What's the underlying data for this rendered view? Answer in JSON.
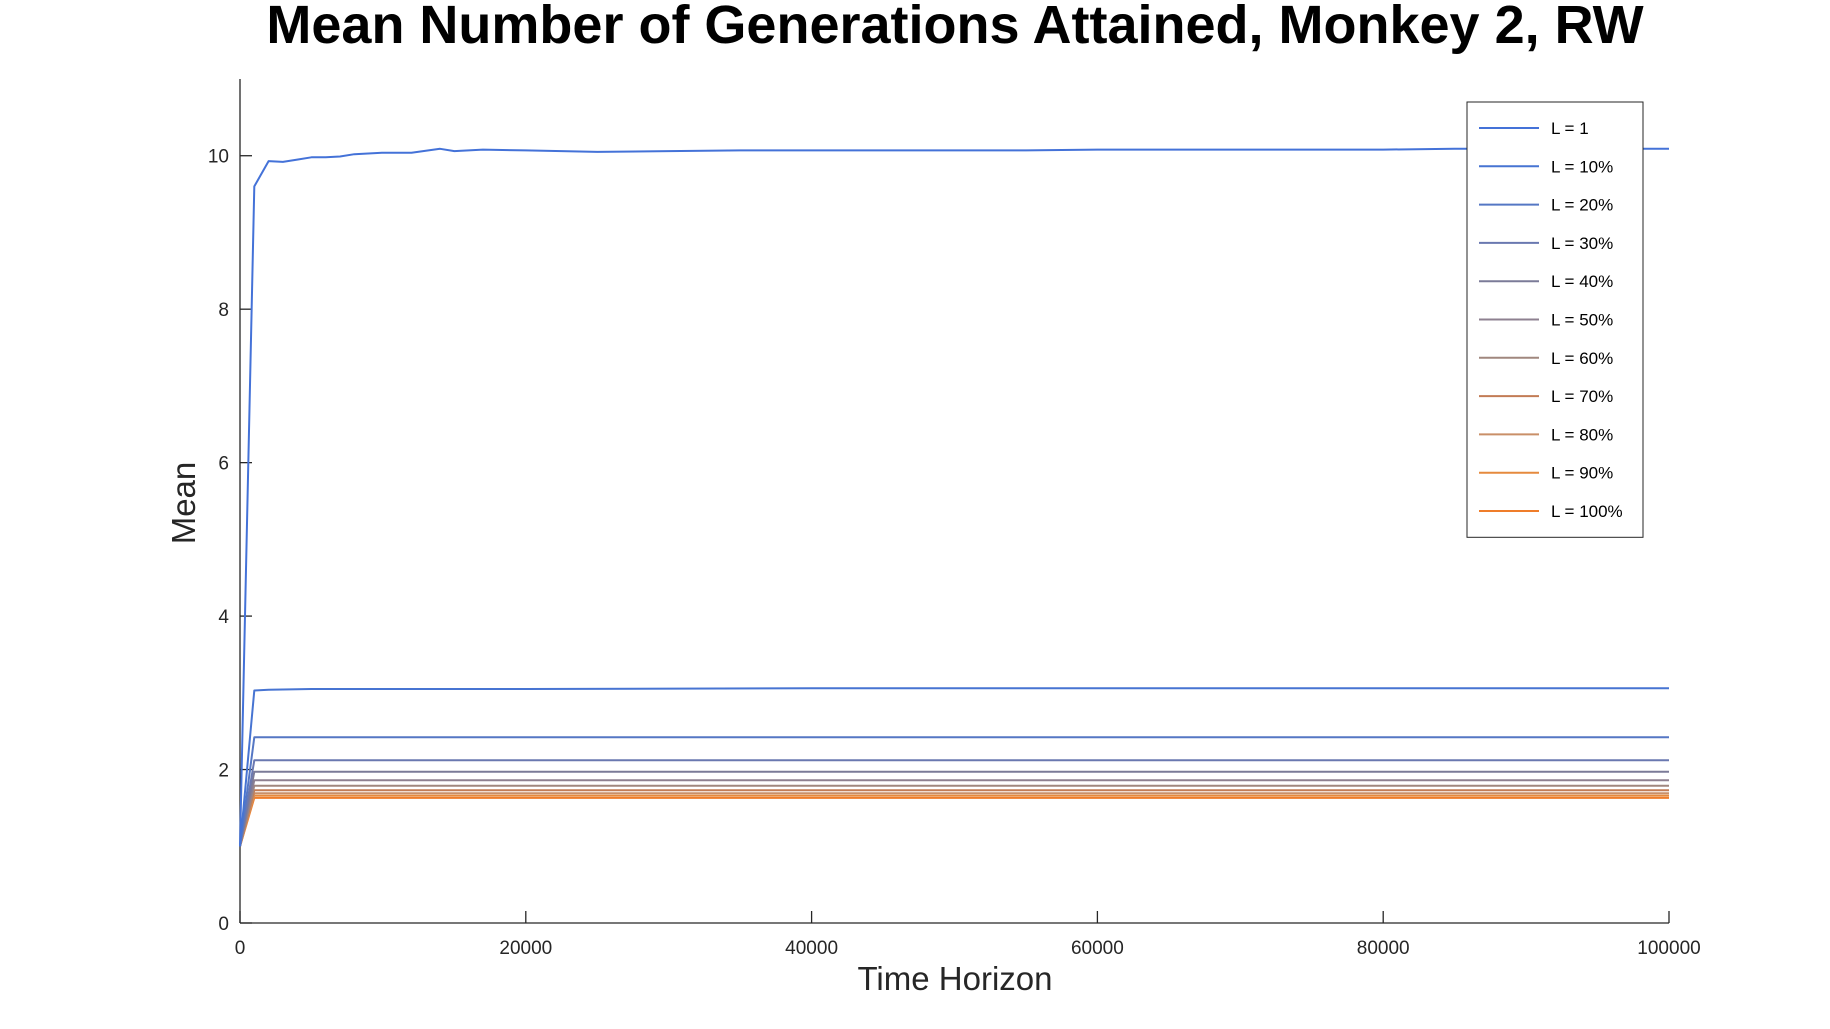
{
  "chart_data": {
    "type": "line",
    "title": "Mean Number of Generations Attained, Monkey 2, RW",
    "xlabel": "Time Horizon",
    "ylabel": "Mean",
    "xlim": [
      0,
      100000
    ],
    "ylim": [
      0,
      11
    ],
    "xticks": [
      0,
      20000,
      40000,
      60000,
      80000,
      100000
    ],
    "xtick_labels": [
      "0",
      "20000",
      "40000",
      "60000",
      "80000",
      "100000"
    ],
    "yticks": [
      0,
      2,
      4,
      6,
      8,
      10
    ],
    "ytick_labels": [
      "0",
      "2",
      "4",
      "6",
      "8",
      "10"
    ],
    "grid": false,
    "legend_position": "top-right",
    "series": [
      {
        "name": "L = 1",
        "color": "#4472d8",
        "x": [
          0,
          1000,
          2000,
          3000,
          4000,
          5000,
          6000,
          7000,
          8000,
          10000,
          12000,
          14000,
          15000,
          17000,
          20000,
          25000,
          30000,
          35000,
          40000,
          45000,
          50000,
          55000,
          60000,
          65000,
          70000,
          75000,
          80000,
          85000,
          90000,
          95000,
          100000
        ],
        "y": [
          1.0,
          9.6,
          9.93,
          9.92,
          9.95,
          9.98,
          9.98,
          9.99,
          10.02,
          10.04,
          10.04,
          10.09,
          10.06,
          10.08,
          10.07,
          10.05,
          10.06,
          10.07,
          10.07,
          10.07,
          10.07,
          10.07,
          10.08,
          10.08,
          10.08,
          10.08,
          10.08,
          10.09,
          10.09,
          10.09,
          10.09
        ]
      },
      {
        "name": "L = 10%",
        "color": "#4774d2",
        "x": [
          0,
          1000,
          2000,
          5000,
          10000,
          20000,
          40000,
          60000,
          80000,
          100000
        ],
        "y": [
          1.0,
          3.03,
          3.04,
          3.05,
          3.05,
          3.05,
          3.06,
          3.06,
          3.06,
          3.06
        ]
      },
      {
        "name": "L = 20%",
        "color": "#5577c4",
        "x": [
          0,
          1000,
          2000,
          10000,
          40000,
          70000,
          100000
        ],
        "y": [
          1.0,
          2.42,
          2.42,
          2.42,
          2.42,
          2.42,
          2.42
        ]
      },
      {
        "name": "L = 30%",
        "color": "#6a78b0",
        "x": [
          0,
          1000,
          2000,
          100000
        ],
        "y": [
          1.0,
          2.12,
          2.12,
          2.12
        ]
      },
      {
        "name": "L = 40%",
        "color": "#7b7b98",
        "x": [
          0,
          1000,
          2000,
          100000
        ],
        "y": [
          1.0,
          1.97,
          1.97,
          1.97
        ]
      },
      {
        "name": "L = 50%",
        "color": "#8e8090",
        "x": [
          0,
          1000,
          2000,
          100000
        ],
        "y": [
          1.0,
          1.86,
          1.86,
          1.86
        ]
      },
      {
        "name": "L = 60%",
        "color": "#a0877e",
        "x": [
          0,
          1000,
          2000,
          100000
        ],
        "y": [
          1.0,
          1.79,
          1.79,
          1.79
        ]
      },
      {
        "name": "L = 70%",
        "color": "#c27c55",
        "x": [
          0,
          1000,
          2000,
          100000
        ],
        "y": [
          1.0,
          1.73,
          1.73,
          1.73
        ]
      },
      {
        "name": "L = 80%",
        "color": "#c98f68",
        "x": [
          0,
          1000,
          2000,
          100000
        ],
        "y": [
          1.0,
          1.69,
          1.69,
          1.69
        ]
      },
      {
        "name": "L = 90%",
        "color": "#e58a3e",
        "x": [
          0,
          1000,
          2000,
          100000
        ],
        "y": [
          1.0,
          1.66,
          1.66,
          1.66
        ]
      },
      {
        "name": "L = 100%",
        "color": "#ef7d2a",
        "x": [
          0,
          1000,
          2000,
          100000
        ],
        "y": [
          1.0,
          1.63,
          1.63,
          1.63
        ]
      }
    ]
  }
}
